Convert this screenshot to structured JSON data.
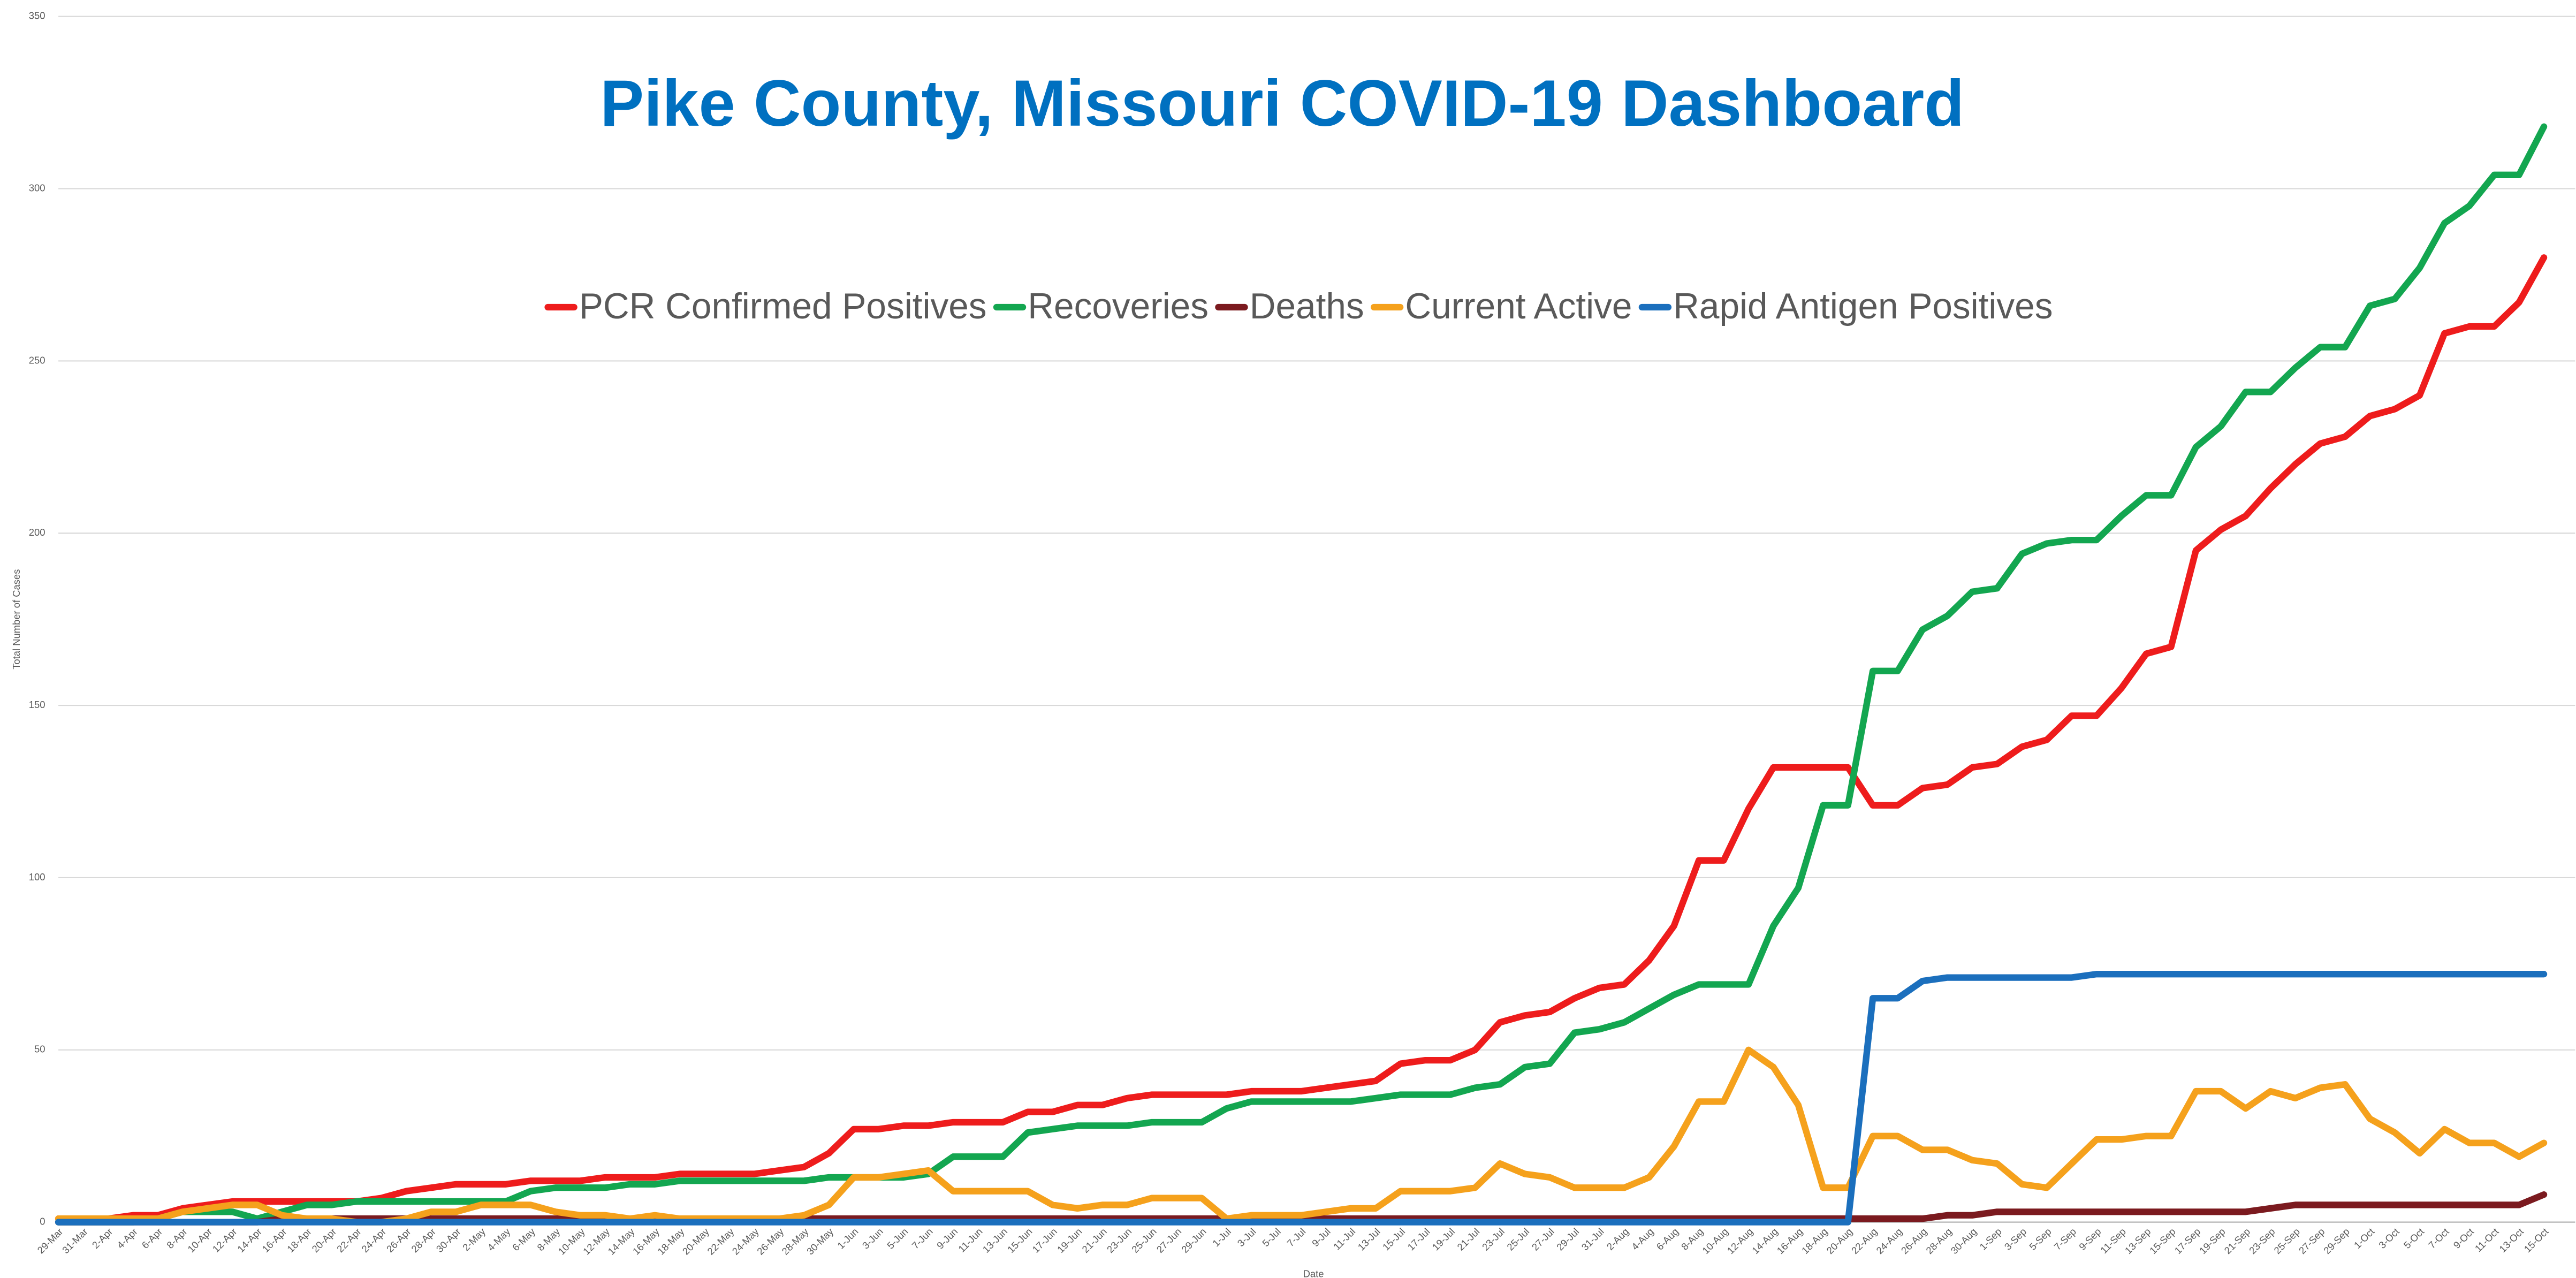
{
  "chart_data": {
    "type": "line",
    "title": "Pike County, Missouri COVID-19 Dashboard",
    "x_label": "Date",
    "y_label": "Total Number of Cases",
    "legend": "top",
    "grid": true,
    "ylim": [
      0,
      350
    ],
    "yticks": [
      0,
      50,
      100,
      150,
      200,
      250,
      300,
      350
    ],
    "categories": [
      "29-Mar",
      "31-Mar",
      "2-Apr",
      "4-Apr",
      "6-Apr",
      "8-Apr",
      "10-Apr",
      "12-Apr",
      "14-Apr",
      "16-Apr",
      "18-Apr",
      "20-Apr",
      "22-Apr",
      "24-Apr",
      "26-Apr",
      "28-Apr",
      "30-Apr",
      "2-May",
      "4-May",
      "6-May",
      "8-May",
      "10-May",
      "12-May",
      "14-May",
      "16-May",
      "18-May",
      "20-May",
      "22-May",
      "24-May",
      "26-May",
      "28-May",
      "30-May",
      "1-Jun",
      "3-Jun",
      "5-Jun",
      "7-Jun",
      "9-Jun",
      "11-Jun",
      "13-Jun",
      "15-Jun",
      "17-Jun",
      "19-Jun",
      "21-Jun",
      "23-Jun",
      "25-Jun",
      "27-Jun",
      "29-Jun",
      "1-Jul",
      "3-Jul",
      "5-Jul",
      "7-Jul",
      "9-Jul",
      "11-Jul",
      "13-Jul",
      "15-Jul",
      "17-Jul",
      "19-Jul",
      "21-Jul",
      "23-Jul",
      "25-Jul",
      "27-Jul",
      "29-Jul",
      "31-Jul",
      "2-Aug",
      "4-Aug",
      "6-Aug",
      "8-Aug",
      "10-Aug",
      "12-Aug",
      "14-Aug",
      "16-Aug",
      "18-Aug",
      "20-Aug",
      "22-Aug",
      "24-Aug",
      "26-Aug",
      "28-Aug",
      "30-Aug",
      "1-Sep",
      "3-Sep",
      "5-Sep",
      "7-Sep",
      "9-Sep",
      "11-Sep",
      "13-Sep",
      "15-Sep",
      "17-Sep",
      "19-Sep",
      "21-Sep",
      "23-Sep",
      "25-Sep",
      "27-Sep",
      "29-Sep",
      "1-Oct",
      "3-Oct",
      "5-Oct",
      "7-Oct",
      "9-Oct",
      "11-Oct",
      "13-Oct",
      "15-Oct"
    ],
    "series": [
      {
        "name": "PCR Confirmed Positives",
        "color": "#ee1c1c",
        "values": [
          1,
          1,
          1,
          2,
          2,
          4,
          5,
          6,
          6,
          6,
          6,
          6,
          6,
          7,
          9,
          10,
          11,
          11,
          11,
          12,
          12,
          12,
          13,
          13,
          13,
          14,
          14,
          14,
          14,
          15,
          16,
          20,
          27,
          27,
          28,
          28,
          29,
          29,
          29,
          32,
          32,
          34,
          34,
          36,
          37,
          37,
          37,
          37,
          38,
          38,
          38,
          39,
          40,
          41,
          46,
          47,
          47,
          50,
          58,
          60,
          61,
          65,
          68,
          69,
          76,
          86,
          105,
          105,
          120,
          132,
          132,
          132,
          132,
          121,
          121,
          126,
          127,
          132,
          133,
          138,
          140,
          147,
          147,
          155,
          165,
          167,
          195,
          201,
          205,
          213,
          220,
          226,
          228,
          234,
          236,
          240,
          258,
          260,
          260,
          267,
          280
        ]
      },
      {
        "name": "Recoveries",
        "color": "#13a650",
        "values": [
          0,
          0,
          0,
          0,
          1,
          3,
          3,
          3,
          1,
          3,
          5,
          5,
          6,
          6,
          6,
          6,
          6,
          6,
          6,
          9,
          10,
          10,
          10,
          11,
          11,
          12,
          12,
          12,
          12,
          12,
          12,
          13,
          13,
          13,
          13,
          14,
          19,
          19,
          19,
          26,
          27,
          28,
          28,
          28,
          29,
          29,
          29,
          33,
          35,
          35,
          35,
          35,
          35,
          36,
          37,
          37,
          37,
          39,
          40,
          45,
          46,
          55,
          56,
          58,
          62,
          66,
          69,
          69,
          69,
          86,
          97,
          121,
          121,
          160,
          160,
          172,
          176,
          183,
          184,
          194,
          197,
          198,
          198,
          205,
          211,
          211,
          225,
          231,
          241,
          241,
          248,
          254,
          254,
          266,
          268,
          277,
          290,
          295,
          304,
          304,
          318
        ]
      },
      {
        "name": "Deaths",
        "color": "#7b1a1f",
        "values": [
          0,
          0,
          0,
          0,
          0,
          0,
          0,
          0,
          0,
          1,
          1,
          1,
          1,
          1,
          1,
          1,
          1,
          1,
          1,
          1,
          1,
          1,
          1,
          1,
          1,
          1,
          1,
          1,
          1,
          1,
          1,
          1,
          1,
          1,
          1,
          1,
          1,
          1,
          1,
          1,
          1,
          1,
          1,
          1,
          1,
          1,
          1,
          1,
          1,
          1,
          1,
          1,
          1,
          1,
          1,
          1,
          1,
          1,
          1,
          1,
          1,
          1,
          1,
          1,
          1,
          1,
          1,
          1,
          1,
          1,
          1,
          1,
          1,
          1,
          1,
          1,
          2,
          2,
          3,
          3,
          3,
          3,
          3,
          3,
          3,
          3,
          3,
          3,
          3,
          4,
          5,
          5,
          5,
          5,
          5,
          5,
          5,
          5,
          5,
          5,
          8
        ]
      },
      {
        "name": "Current Active",
        "color": "#f5a11c",
        "values": [
          1,
          1,
          1,
          1,
          1,
          3,
          4,
          5,
          5,
          2,
          1,
          1,
          0,
          0,
          1,
          3,
          3,
          5,
          5,
          5,
          3,
          2,
          2,
          1,
          2,
          1,
          1,
          1,
          1,
          1,
          2,
          5,
          13,
          13,
          14,
          15,
          9,
          9,
          9,
          9,
          5,
          4,
          5,
          5,
          7,
          7,
          7,
          1,
          2,
          2,
          2,
          3,
          4,
          4,
          9,
          9,
          9,
          10,
          17,
          14,
          13,
          10,
          10,
          10,
          13,
          22,
          35,
          35,
          50,
          45,
          34,
          10,
          10,
          25,
          25,
          21,
          21,
          18,
          17,
          11,
          10,
          17,
          24,
          24,
          25,
          25,
          38,
          38,
          33,
          38,
          36,
          39,
          40,
          30,
          26,
          20,
          27,
          23,
          23,
          19,
          23
        ]
      },
      {
        "name": "Rapid Antigen Positives",
        "color": "#1b6fbd",
        "values": [
          0,
          0,
          0,
          0,
          0,
          0,
          0,
          0,
          0,
          0,
          0,
          0,
          0,
          0,
          0,
          0,
          0,
          0,
          0,
          0,
          0,
          0,
          0,
          0,
          0,
          0,
          0,
          0,
          0,
          0,
          0,
          0,
          0,
          0,
          0,
          0,
          0,
          0,
          0,
          0,
          0,
          0,
          0,
          0,
          0,
          0,
          0,
          0,
          0,
          0,
          0,
          0,
          0,
          0,
          0,
          0,
          0,
          0,
          0,
          0,
          0,
          0,
          0,
          0,
          0,
          0,
          0,
          0,
          0,
          0,
          0,
          0,
          0,
          65,
          65,
          70,
          71,
          71,
          71,
          71,
          71,
          71,
          72,
          72,
          72,
          72,
          72,
          72,
          72,
          72,
          72,
          72,
          72,
          72,
          72,
          72,
          72,
          72,
          72,
          72,
          72
        ]
      }
    ]
  }
}
